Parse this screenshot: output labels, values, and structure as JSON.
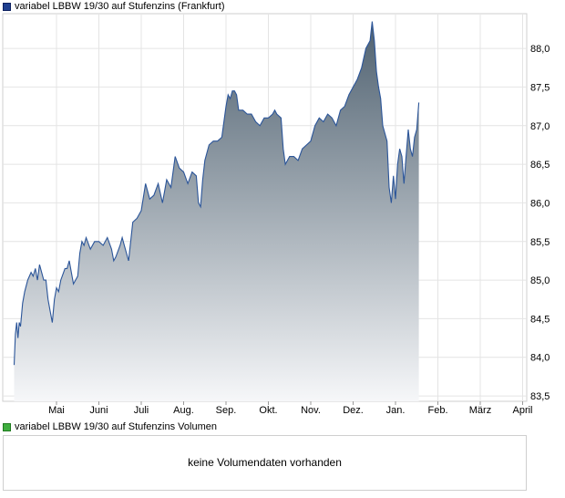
{
  "chart_data": [
    {
      "type": "area",
      "title": "variabel LBBW 19/30 auf Stufenzins (Frankfurt)",
      "x_labels": [
        "Mai",
        "Juni",
        "Juli",
        "Aug.",
        "Sep.",
        "Okt.",
        "Nov.",
        "Dez.",
        "Jan.",
        "Feb.",
        "März",
        "April"
      ],
      "y_ticks": [
        "88,0",
        "87,5",
        "87,0",
        "86,5",
        "86,0",
        "85,5",
        "85,0",
        "84,5",
        "84,0",
        "83,5"
      ],
      "ylim": [
        83.43,
        88.45
      ],
      "grid": true,
      "y_axis_side": "right",
      "line_color": "#2b5599",
      "fill_top_color": "#4f6170",
      "fill_bottom_color": "#f6f7f9",
      "series": [
        {
          "points": [
            [
              0.0,
              83.9
            ],
            [
              0.03,
              84.3
            ],
            [
              0.06,
              84.45
            ],
            [
              0.09,
              84.25
            ],
            [
              0.12,
              84.45
            ],
            [
              0.15,
              84.4
            ],
            [
              0.2,
              84.7
            ],
            [
              0.25,
              84.85
            ],
            [
              0.32,
              85.0
            ],
            [
              0.4,
              85.1
            ],
            [
              0.45,
              85.05
            ],
            [
              0.5,
              85.15
            ],
            [
              0.55,
              85.0
            ],
            [
              0.6,
              85.2
            ],
            [
              0.65,
              85.1
            ],
            [
              0.7,
              85.0
            ],
            [
              0.75,
              85.0
            ],
            [
              0.8,
              84.75
            ],
            [
              0.85,
              84.6
            ],
            [
              0.9,
              84.45
            ],
            [
              0.95,
              84.75
            ],
            [
              1.0,
              84.9
            ],
            [
              1.05,
              84.85
            ],
            [
              1.1,
              85.0
            ],
            [
              1.2,
              85.15
            ],
            [
              1.25,
              85.15
            ],
            [
              1.3,
              85.25
            ],
            [
              1.35,
              85.1
            ],
            [
              1.4,
              84.95
            ],
            [
              1.5,
              85.05
            ],
            [
              1.55,
              85.35
            ],
            [
              1.6,
              85.5
            ],
            [
              1.65,
              85.45
            ],
            [
              1.7,
              85.55
            ],
            [
              1.8,
              85.4
            ],
            [
              1.9,
              85.5
            ],
            [
              2.0,
              85.5
            ],
            [
              2.1,
              85.45
            ],
            [
              2.2,
              85.55
            ],
            [
              2.3,
              85.4
            ],
            [
              2.35,
              85.25
            ],
            [
              2.4,
              85.3
            ],
            [
              2.5,
              85.45
            ],
            [
              2.55,
              85.55
            ],
            [
              2.6,
              85.45
            ],
            [
              2.7,
              85.25
            ],
            [
              2.8,
              85.75
            ],
            [
              2.9,
              85.8
            ],
            [
              3.0,
              85.9
            ],
            [
              3.1,
              86.25
            ],
            [
              3.2,
              86.05
            ],
            [
              3.3,
              86.1
            ],
            [
              3.4,
              86.25
            ],
            [
              3.5,
              86.0
            ],
            [
              3.6,
              86.3
            ],
            [
              3.7,
              86.2
            ],
            [
              3.8,
              86.6
            ],
            [
              3.9,
              86.45
            ],
            [
              4.0,
              86.4
            ],
            [
              4.1,
              86.25
            ],
            [
              4.2,
              86.4
            ],
            [
              4.3,
              86.35
            ],
            [
              4.35,
              86.0
            ],
            [
              4.4,
              85.95
            ],
            [
              4.45,
              86.3
            ],
            [
              4.5,
              86.55
            ],
            [
              4.6,
              86.75
            ],
            [
              4.7,
              86.8
            ],
            [
              4.8,
              86.8
            ],
            [
              4.9,
              86.85
            ],
            [
              5.0,
              87.25
            ],
            [
              5.05,
              87.4
            ],
            [
              5.1,
              87.35
            ],
            [
              5.15,
              87.45
            ],
            [
              5.2,
              87.45
            ],
            [
              5.25,
              87.4
            ],
            [
              5.3,
              87.2
            ],
            [
              5.4,
              87.2
            ],
            [
              5.5,
              87.15
            ],
            [
              5.6,
              87.15
            ],
            [
              5.7,
              87.05
            ],
            [
              5.8,
              87.0
            ],
            [
              5.9,
              87.1
            ],
            [
              6.0,
              87.1
            ],
            [
              6.1,
              87.15
            ],
            [
              6.15,
              87.2
            ],
            [
              6.2,
              87.15
            ],
            [
              6.3,
              87.1
            ],
            [
              6.35,
              86.7
            ],
            [
              6.4,
              86.5
            ],
            [
              6.5,
              86.6
            ],
            [
              6.6,
              86.6
            ],
            [
              6.7,
              86.55
            ],
            [
              6.8,
              86.7
            ],
            [
              6.9,
              86.75
            ],
            [
              7.0,
              86.8
            ],
            [
              7.1,
              87.0
            ],
            [
              7.2,
              87.1
            ],
            [
              7.3,
              87.05
            ],
            [
              7.4,
              87.15
            ],
            [
              7.5,
              87.1
            ],
            [
              7.6,
              87.0
            ],
            [
              7.7,
              87.2
            ],
            [
              7.8,
              87.25
            ],
            [
              7.9,
              87.4
            ],
            [
              8.0,
              87.5
            ],
            [
              8.1,
              87.6
            ],
            [
              8.2,
              87.75
            ],
            [
              8.3,
              88.0
            ],
            [
              8.4,
              88.1
            ],
            [
              8.45,
              88.35
            ],
            [
              8.5,
              88.1
            ],
            [
              8.55,
              87.7
            ],
            [
              8.6,
              87.5
            ],
            [
              8.65,
              87.35
            ],
            [
              8.7,
              87.0
            ],
            [
              8.8,
              86.8
            ],
            [
              8.85,
              86.2
            ],
            [
              8.9,
              86.0
            ],
            [
              8.95,
              86.35
            ],
            [
              9.0,
              86.05
            ],
            [
              9.05,
              86.5
            ],
            [
              9.1,
              86.7
            ],
            [
              9.15,
              86.6
            ],
            [
              9.2,
              86.25
            ],
            [
              9.25,
              86.6
            ],
            [
              9.3,
              86.95
            ],
            [
              9.35,
              86.7
            ],
            [
              9.4,
              86.6
            ],
            [
              9.45,
              86.85
            ],
            [
              9.5,
              86.95
            ],
            [
              9.55,
              87.3
            ]
          ]
        }
      ]
    },
    {
      "type": "bar",
      "title": "variabel LBBW 19/30 auf Stufenzins Volumen",
      "message": "keine Volumendaten vorhanden"
    }
  ]
}
